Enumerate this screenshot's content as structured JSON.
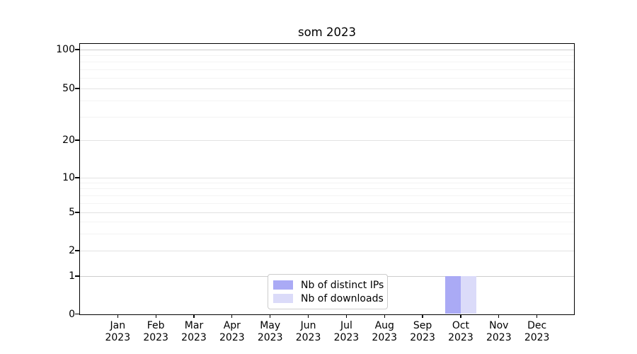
{
  "chart_data": {
    "type": "bar",
    "title": "som 2023",
    "months": [
      "Jan",
      "Feb",
      "Mar",
      "Apr",
      "May",
      "Jun",
      "Jul",
      "Aug",
      "Sep",
      "Oct",
      "Nov",
      "Dec"
    ],
    "year": "2023",
    "series": [
      {
        "name": "Nb of distinct IPs",
        "color": "#aaaaf5",
        "values": [
          0,
          0,
          0,
          0,
          0,
          0,
          0,
          0,
          0,
          1,
          0,
          0
        ]
      },
      {
        "name": "Nb of downloads",
        "color": "#dbdbf9",
        "values": [
          0,
          0,
          0,
          0,
          0,
          0,
          0,
          0,
          0,
          1,
          0,
          0
        ]
      }
    ],
    "xlabel": "",
    "ylabel": "",
    "yscale": "symlog",
    "y_ticks": [
      0,
      1,
      2,
      5,
      10,
      20,
      50,
      100
    ],
    "ylim": [
      0,
      107
    ],
    "grid": true,
    "legend_position": "lower-center"
  },
  "colors": {
    "background": "#ffffff",
    "spine": "#000000",
    "grid_major": "#e2e2e2",
    "grid_emphasis": "#cdcdcd",
    "grid_minor": "#f3f3f3",
    "legend_border": "#cccccc",
    "text": "#000000"
  }
}
